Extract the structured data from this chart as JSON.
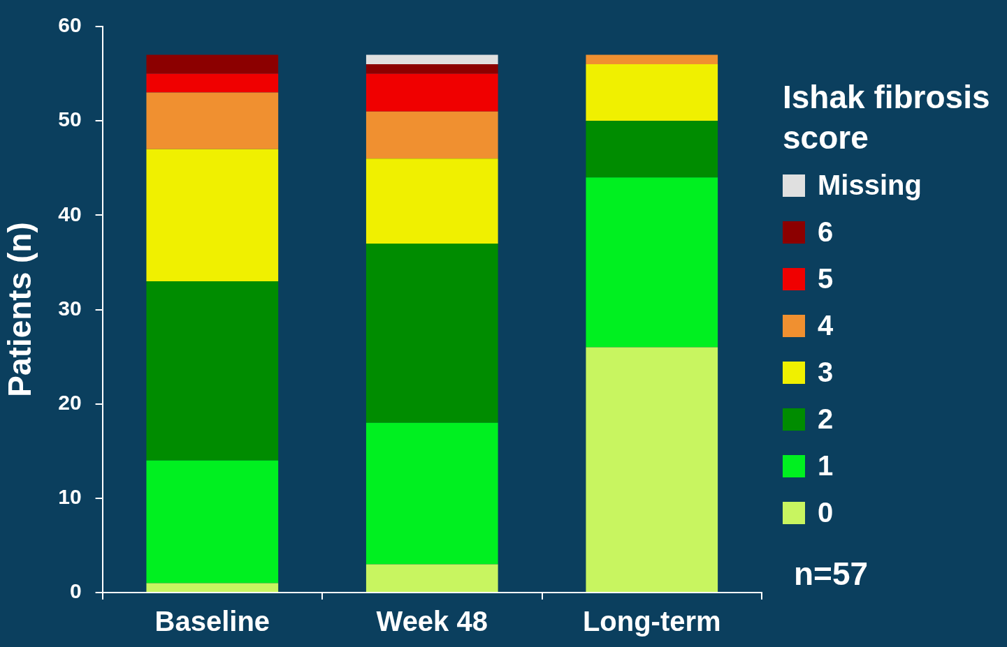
{
  "chart_data": {
    "type": "bar",
    "stacked": true,
    "ylabel": "Patients (n)",
    "legend_title": "Ishak fibrosis score",
    "legend": "right",
    "categories": [
      "Baseline",
      "Week 48",
      "Long-term"
    ],
    "ylim": [
      0,
      60
    ],
    "yticks": [
      0,
      10,
      20,
      30,
      40,
      50,
      60
    ],
    "grid": false,
    "series": [
      {
        "name": "0",
        "color": "#c8f560",
        "values": [
          1,
          3,
          26
        ]
      },
      {
        "name": "1",
        "color": "#00f020",
        "values": [
          13,
          15,
          18
        ]
      },
      {
        "name": "2",
        "color": "#008c00",
        "values": [
          19,
          19,
          6
        ]
      },
      {
        "name": "3",
        "color": "#f0f000",
        "values": [
          14,
          9,
          6
        ]
      },
      {
        "name": "4",
        "color": "#f09030",
        "values": [
          6,
          5,
          1
        ]
      },
      {
        "name": "5",
        "color": "#f00000",
        "values": [
          2,
          4,
          0
        ]
      },
      {
        "name": "6",
        "color": "#8c0000",
        "values": [
          2,
          1,
          0
        ]
      },
      {
        "name": "Missing",
        "color": "#e0e0e0",
        "values": [
          0,
          1,
          0
        ]
      }
    ],
    "annotations": [
      "n=57"
    ]
  }
}
